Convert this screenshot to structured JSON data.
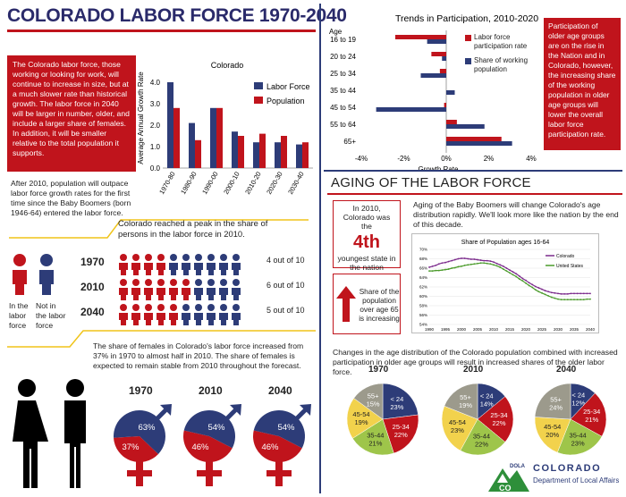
{
  "title": "COLORADO LABOR FORCE 1970-2040",
  "intro_text": "The Colorado labor force, those working or looking for work, will continue to increase in size, but at a much slower rate than historical growth. The labor force in 2040 will be larger in number, older, and include a larger share of females. In addition, it will be smaller relative to the total population it supports.",
  "boomers_text": "After 2010, population will outpace labor force growth rates for the first time since the Baby Boomers (born 1946-64) entered the labor force.",
  "peak_text": "Colorado reached a peak in the share of persons in the labor force in 2010.",
  "legend_in": "In the labor force",
  "legend_not": "Not in the labor force",
  "people_rows": [
    {
      "year": "1970",
      "text": "4 out of 10",
      "in": 4
    },
    {
      "year": "2010",
      "text": "6 out of 10",
      "in": 6
    },
    {
      "year": "2040",
      "text": "5 out of 10",
      "in": 5
    }
  ],
  "females_text": "The share of females in Colorado's labor force increased from 37% in 1970 to almost half in 2010. The share of females is expected to remain stable from 2010 throughout the forecast.",
  "gender_pies": [
    {
      "year": "1970",
      "male": 63,
      "female": 37,
      "male_label": "63%",
      "female_label": "37%"
    },
    {
      "year": "2010",
      "male": 54,
      "female": 46,
      "male_label": "54%",
      "female_label": "46%"
    },
    {
      "year": "2040",
      "male": 54,
      "female": 46,
      "male_label": "54%",
      "female_label": "46%"
    }
  ],
  "growth_chart": {
    "title": "Colorado",
    "ylabel": "Average Annual Growth Rate",
    "legend": [
      "Labor Force",
      "Population"
    ]
  },
  "participation_chart": {
    "title": "Trends in Participation, 2010-2020",
    "age_header": "Age",
    "xlabel": "Growth Rate",
    "legend": [
      "Labor force participation rate",
      "Share of working population"
    ]
  },
  "participation_note": "Participation of older age groups are on the rise in the Nation and in Colorado, however, the increasing share of the working population in older age groups will lower the overall labor force participation rate.",
  "aging_title": "AGING OF THE LABOR FORCE",
  "rank_pre": "In 2010, Colorado was the",
  "rank_value": "4th",
  "rank_post": "youngest state in the nation",
  "share65_text": "Share of the population over age 65 is increasing",
  "aging_text": "Aging of the Baby Boomers will change Colorado's age distribution rapidly. We'll look more like the nation by the end of this decade.",
  "share_chart": {
    "title": "Share of Population ages 16-64",
    "legend": [
      "Colorado",
      "United States"
    ]
  },
  "age_dist_text": "Changes in the age distribution of the Colorado population combined with increased participation in older age groups will result in increased shares of the older labor force.",
  "age_pies": [
    {
      "year": "1970",
      "slices": [
        23,
        22,
        21,
        19,
        15
      ],
      "labels": [
        "< 24\n23%",
        "25-34\n22%",
        "35-44\n21%",
        "45-54\n19%",
        "55+\n15%"
      ]
    },
    {
      "year": "2010",
      "slices": [
        14,
        22,
        22,
        23,
        19
      ],
      "labels": [
        "< 24\n14%",
        "25-34\n22%",
        "35-44\n22%",
        "45-54\n23%",
        "55+\n19%"
      ]
    },
    {
      "year": "2040",
      "slices": [
        12,
        21,
        23,
        20,
        24
      ],
      "labels": [
        "< 24\n12%",
        "25-34\n21%",
        "35-44\n23%",
        "45-54\n20%",
        "55+\n24%"
      ]
    }
  ],
  "logo": {
    "name": "COLORADO",
    "dept": "Department of Local Affairs",
    "mark": "DOLA",
    "co": "CO"
  },
  "colors": {
    "red": "#c0141c",
    "navy": "#2d3c78",
    "yellow": "#f2d24c",
    "green": "#9ec54a",
    "gray": "#9c9a8c",
    "accent_line": "#f0c419"
  },
  "chart_data": [
    {
      "type": "bar",
      "title": "Colorado",
      "ylabel": "Average Annual Growth Rate",
      "categories": [
        "1970-80",
        "1980-90",
        "1990-00",
        "2000-10",
        "2010-20",
        "2020-30",
        "2030-40"
      ],
      "series": [
        {
          "name": "Labor Force",
          "values": [
            4.0,
            2.1,
            2.8,
            1.7,
            1.2,
            1.2,
            1.1
          ]
        },
        {
          "name": "Population",
          "values": [
            2.8,
            1.3,
            2.8,
            1.5,
            1.6,
            1.5,
            1.2
          ]
        }
      ],
      "ylim": [
        0,
        4.5
      ],
      "yticks": [
        "0.0",
        "1.0",
        "2.0",
        "3.0",
        "4.0"
      ]
    },
    {
      "type": "bar",
      "orientation": "horizontal",
      "title": "Trends in Participation, 2010-2020",
      "xlabel": "Growth Rate",
      "categories": [
        "16 to 19",
        "20 to 24",
        "25 to 34",
        "35 to 44",
        "45 to 54",
        "55 to 64",
        "65+"
      ],
      "series": [
        {
          "name": "Labor force participation rate",
          "values": [
            -2.4,
            -0.7,
            -0.3,
            0.0,
            -0.1,
            0.5,
            2.6
          ]
        },
        {
          "name": "Share of working population",
          "values": [
            -0.9,
            -0.2,
            -1.2,
            0.4,
            -3.3,
            1.8,
            3.1
          ]
        }
      ],
      "xlim": [
        -4,
        4
      ],
      "xticks": [
        "-4%",
        "-2%",
        "0%",
        "2%",
        "4%"
      ]
    },
    {
      "type": "line",
      "title": "Share of Population ages 16-64",
      "x": [
        1990,
        1991,
        1992,
        1993,
        1994,
        1995,
        1996,
        1997,
        1998,
        1999,
        2000,
        2001,
        2002,
        2003,
        2004,
        2005,
        2006,
        2007,
        2008,
        2009,
        2010,
        2011,
        2012,
        2013,
        2014,
        2015,
        2016,
        2017,
        2018,
        2019,
        2020,
        2021,
        2022,
        2023,
        2024,
        2025,
        2026,
        2027,
        2028,
        2029,
        2030,
        2031,
        2032,
        2033,
        2034,
        2035,
        2036,
        2037,
        2038,
        2039,
        2040
      ],
      "series": [
        {
          "name": "Colorado",
          "values": [
            66.2,
            66.4,
            66.6,
            66.9,
            67.1,
            67.2,
            67.4,
            67.6,
            67.8,
            68.0,
            68.1,
            68.1,
            68.0,
            67.9,
            67.9,
            67.8,
            67.7,
            67.6,
            67.6,
            67.5,
            67.3,
            67.0,
            66.7,
            66.4,
            66.0,
            65.6,
            65.2,
            64.8,
            64.3,
            63.8,
            63.4,
            62.9,
            62.5,
            62.1,
            61.8,
            61.5,
            61.2,
            61.0,
            60.8,
            60.7,
            60.6,
            60.5,
            60.5,
            60.5,
            60.6,
            60.6,
            60.6,
            60.6,
            60.6,
            60.6,
            60.6
          ]
        },
        {
          "name": "United States",
          "values": [
            65.4,
            65.4,
            65.5,
            65.5,
            65.6,
            65.7,
            65.8,
            66.0,
            66.1,
            66.3,
            66.4,
            66.6,
            66.7,
            66.8,
            66.9,
            67.0,
            67.1,
            67.1,
            67.0,
            66.9,
            66.7,
            66.5,
            66.2,
            65.8,
            65.4,
            65.0,
            64.6,
            64.2,
            63.7,
            63.3,
            62.8,
            62.3,
            61.9,
            61.4,
            61.0,
            60.7,
            60.4,
            60.1,
            59.8,
            59.6,
            59.4,
            59.3,
            59.3,
            59.3,
            59.3,
            59.3,
            59.3,
            59.3,
            59.3,
            59.4,
            59.4
          ]
        }
      ],
      "ylim": [
        54,
        70
      ],
      "yticks": [
        "54%",
        "56%",
        "58%",
        "60%",
        "62%",
        "64%",
        "66%",
        "68%",
        "70%"
      ],
      "xticks": [
        "1990",
        "1995",
        "2000",
        "2005",
        "2010",
        "2015",
        "2020",
        "2025",
        "2030",
        "2035",
        "2040"
      ]
    }
  ]
}
